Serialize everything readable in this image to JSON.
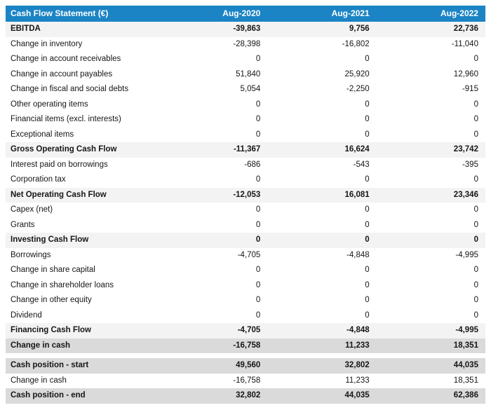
{
  "chart_data": {
    "type": "table",
    "title": "Cash Flow Statement (€)",
    "columns": [
      "Aug-2020",
      "Aug-2021",
      "Aug-2022"
    ],
    "rows": [
      {
        "label": "EBITDA",
        "values": [
          "-39,863",
          "9,756",
          "22,736"
        ],
        "style": "subtotal",
        "gap_before": false
      },
      {
        "label": "Change in inventory",
        "values": [
          "-28,398",
          "-16,802",
          "-11,040"
        ],
        "style": "normal",
        "gap_before": false
      },
      {
        "label": "Change in account receivables",
        "values": [
          "0",
          "0",
          "0"
        ],
        "style": "normal",
        "gap_before": false
      },
      {
        "label": "Change in account payables",
        "values": [
          "51,840",
          "25,920",
          "12,960"
        ],
        "style": "normal",
        "gap_before": false
      },
      {
        "label": "Change in fiscal and social debts",
        "values": [
          "5,054",
          "-2,250",
          "-915"
        ],
        "style": "normal",
        "gap_before": false
      },
      {
        "label": "Other operating items",
        "values": [
          "0",
          "0",
          "0"
        ],
        "style": "normal",
        "gap_before": false
      },
      {
        "label": "Financial items (excl. interests)",
        "values": [
          "0",
          "0",
          "0"
        ],
        "style": "normal",
        "gap_before": false
      },
      {
        "label": "Exceptional items",
        "values": [
          "0",
          "0",
          "0"
        ],
        "style": "normal",
        "gap_before": false
      },
      {
        "label": "Gross Operating Cash Flow",
        "values": [
          "-11,367",
          "16,624",
          "23,742"
        ],
        "style": "subtotal",
        "gap_before": false
      },
      {
        "label": "Interest paid on borrowings",
        "values": [
          "-686",
          "-543",
          "-395"
        ],
        "style": "normal",
        "gap_before": false
      },
      {
        "label": "Corporation tax",
        "values": [
          "0",
          "0",
          "0"
        ],
        "style": "normal",
        "gap_before": false
      },
      {
        "label": "Net Operating Cash Flow",
        "values": [
          "-12,053",
          "16,081",
          "23,346"
        ],
        "style": "subtotal",
        "gap_before": false
      },
      {
        "label": "Capex (net)",
        "values": [
          "0",
          "0",
          "0"
        ],
        "style": "normal",
        "gap_before": false
      },
      {
        "label": "Grants",
        "values": [
          "0",
          "0",
          "0"
        ],
        "style": "normal",
        "gap_before": false
      },
      {
        "label": "Investing Cash Flow",
        "values": [
          "0",
          "0",
          "0"
        ],
        "style": "subtotal",
        "gap_before": false
      },
      {
        "label": "Borrowings",
        "values": [
          "-4,705",
          "-4,848",
          "-4,995"
        ],
        "style": "normal",
        "gap_before": false
      },
      {
        "label": "Change in share capital",
        "values": [
          "0",
          "0",
          "0"
        ],
        "style": "normal",
        "gap_before": false
      },
      {
        "label": "Change in shareholder loans",
        "values": [
          "0",
          "0",
          "0"
        ],
        "style": "normal",
        "gap_before": false
      },
      {
        "label": "Change in other equity",
        "values": [
          "0",
          "0",
          "0"
        ],
        "style": "normal",
        "gap_before": false
      },
      {
        "label": "Dividend",
        "values": [
          "0",
          "0",
          "0"
        ],
        "style": "normal",
        "gap_before": false
      },
      {
        "label": "Financing Cash Flow",
        "values": [
          "-4,705",
          "-4,848",
          "-4,995"
        ],
        "style": "subtotal",
        "gap_before": false
      },
      {
        "label": "Change in cash",
        "values": [
          "-16,758",
          "11,233",
          "18,351"
        ],
        "style": "total",
        "gap_before": false
      },
      {
        "label": "Cash position - start",
        "values": [
          "49,560",
          "32,802",
          "44,035"
        ],
        "style": "total",
        "gap_before": true
      },
      {
        "label": "Change in cash",
        "values": [
          "-16,758",
          "11,233",
          "18,351"
        ],
        "style": "normal",
        "gap_before": false
      },
      {
        "label": "Cash position - end",
        "values": [
          "32,802",
          "44,035",
          "62,386"
        ],
        "style": "total",
        "gap_before": false
      }
    ]
  },
  "colors": {
    "header_bg": "#1b84c5",
    "header_text": "#ffffff",
    "subtotal_row_bg": "#f3f3f3",
    "total_row_bg": "#dadada",
    "body_text": "#161616"
  }
}
